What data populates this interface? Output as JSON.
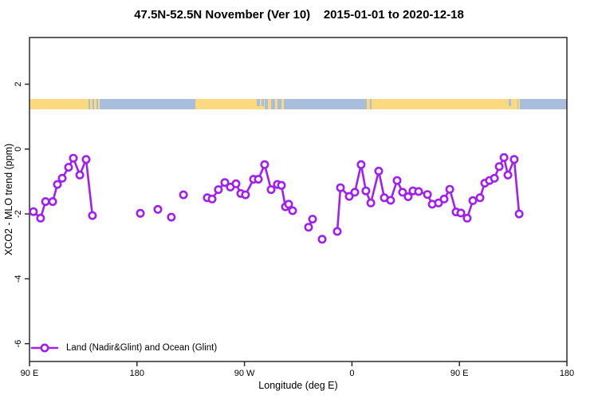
{
  "chart_data": {
    "type": "line",
    "title": "47.5N-52.5N November (Ver 10)    2015-01-01 to 2020-12-18",
    "xlabel": "Longitude (deg E)",
    "ylabel": "XCO2 - MLO trend (ppm)",
    "xlim": [
      90,
      540
    ],
    "ylim": [
      -6.55,
      3.44
    ],
    "grid": false,
    "series_color": "#A020F0",
    "x_ticks": [
      {
        "pos": 90,
        "label": "90 E"
      },
      {
        "pos": 180,
        "label": "180"
      },
      {
        "pos": 270,
        "label": "90 W"
      },
      {
        "pos": 360,
        "label": "0"
      },
      {
        "pos": 450,
        "label": "90 E"
      },
      {
        "pos": 540,
        "label": "180"
      }
    ],
    "y_ticks": [
      {
        "pos": 2,
        "label": "2"
      },
      {
        "pos": 0,
        "label": "0"
      },
      {
        "pos": -2,
        "label": "-2"
      },
      {
        "pos": -4,
        "label": "-4"
      },
      {
        "pos": -6,
        "label": "-6"
      }
    ],
    "legend": {
      "position": "bottom-left",
      "label": "Land (Nadir&Glint) and Ocean (Glint)"
    },
    "map_strip": {
      "description": "land-ocean strip along 47.5N-52.5N",
      "land_color": "#FBD97E",
      "ocean_color": "#A9BEDC",
      "land_segments": [
        [
          90,
          139.4
        ],
        [
          140.7,
          142.7
        ],
        [
          144.1,
          146.1
        ],
        [
          147.4,
          148.8
        ],
        [
          228.9,
          287.0
        ],
        [
          289.6,
          292.3
        ],
        [
          295.6,
          297.6
        ],
        [
          301.0,
          303.0
        ],
        [
          372.4,
          375.1
        ],
        [
          376.4,
          498.6
        ],
        [
          499.3,
          500.6
        ]
      ],
      "ocean_specks": [
        [
          280.3,
          283.0
        ],
        [
          284.3,
          286.3
        ],
        [
          491.3,
          493.3
        ]
      ]
    },
    "segments": [
      [
        [
          93.3,
          -1.93
        ],
        [
          99.3,
          -2.13
        ],
        [
          103.4,
          -1.62
        ],
        [
          109.4,
          -1.62
        ],
        [
          113.4,
          -1.09
        ],
        [
          117.4,
          -0.9
        ],
        [
          122.7,
          -0.56
        ],
        [
          126.7,
          -0.28
        ],
        [
          132.1,
          -0.8
        ],
        [
          137.4,
          -0.32
        ],
        [
          142.7,
          -2.05
        ]
      ],
      [
        [
          238.9,
          -1.5
        ],
        [
          242.9,
          -1.54
        ],
        [
          248.2,
          -1.25
        ],
        [
          253.6,
          -1.03
        ],
        [
          258.2,
          -1.17
        ],
        [
          262.9,
          -1.07
        ],
        [
          266.9,
          -1.37
        ],
        [
          270.9,
          -1.41
        ],
        [
          277.6,
          -0.93
        ],
        [
          281.6,
          -0.93
        ],
        [
          286.9,
          -0.48
        ],
        [
          292.3,
          -1.25
        ],
        [
          297.6,
          -1.09
        ],
        [
          301.0,
          -1.12
        ],
        [
          304.3,
          -1.78
        ],
        [
          307.0,
          -1.7
        ],
        [
          310.3,
          -1.9
        ]
      ],
      [
        [
          323.7,
          -2.41
        ],
        [
          327.0,
          -2.16
        ]
      ],
      [
        [
          347.7,
          -2.54
        ],
        [
          350.4,
          -1.19
        ],
        [
          357.7,
          -1.46
        ],
        [
          362.4,
          -1.33
        ],
        [
          367.7,
          -0.48
        ],
        [
          371.7,
          -1.29
        ],
        [
          375.8,
          -1.66
        ],
        [
          382.4,
          -0.68
        ],
        [
          387.1,
          -1.5
        ],
        [
          392.4,
          -1.58
        ],
        [
          397.8,
          -0.97
        ],
        [
          402.4,
          -1.33
        ],
        [
          407.1,
          -1.47
        ],
        [
          411.1,
          -1.29
        ],
        [
          415.8,
          -1.31
        ],
        [
          423.2,
          -1.4
        ],
        [
          427.2,
          -1.7
        ],
        [
          432.5,
          -1.66
        ],
        [
          437.2,
          -1.54
        ],
        [
          441.9,
          -1.24
        ],
        [
          447.2,
          -1.94
        ],
        [
          451.2,
          -1.97
        ],
        [
          456.5,
          -2.13
        ],
        [
          461.2,
          -1.59
        ],
        [
          467.2,
          -1.5
        ],
        [
          471.2,
          -1.05
        ],
        [
          475.2,
          -0.97
        ],
        [
          479.3,
          -0.9
        ],
        [
          483.3,
          -0.54
        ],
        [
          487.3,
          -0.26
        ],
        [
          490.6,
          -0.8
        ],
        [
          495.9,
          -0.32
        ],
        [
          500.0,
          -2.0
        ]
      ]
    ],
    "isolated_points": [
      [
        182.8,
        -1.98
      ],
      [
        197.5,
        -1.86
      ],
      [
        208.8,
        -2.1
      ],
      [
        218.9,
        -1.41
      ],
      [
        335.0,
        -2.78
      ]
    ]
  }
}
